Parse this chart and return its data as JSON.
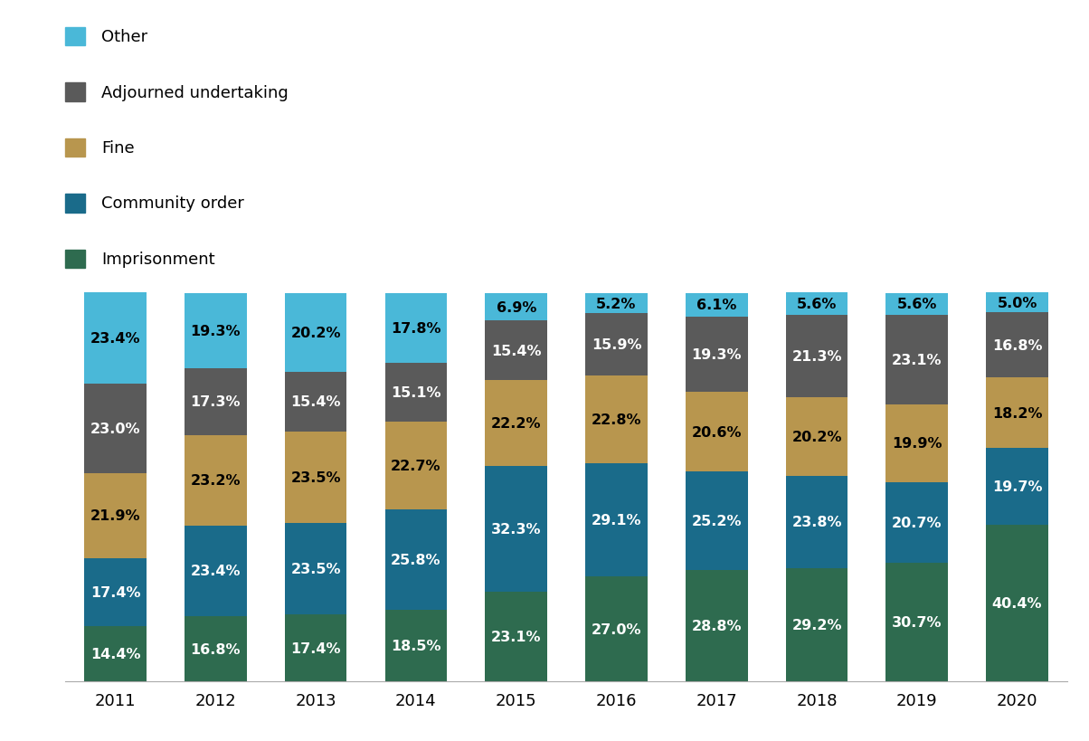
{
  "years": [
    "2011",
    "2012",
    "2013",
    "2014",
    "2015",
    "2016",
    "2017",
    "2018",
    "2019",
    "2020"
  ],
  "categories": [
    "Imprisonment",
    "Community order",
    "Fine",
    "Adjourned undertaking",
    "Other"
  ],
  "colors": [
    "#2e6b4f",
    "#1a6b8a",
    "#b8964e",
    "#5a5a5a",
    "#4ab8d8"
  ],
  "data": {
    "Imprisonment": [
      14.4,
      16.8,
      17.4,
      18.5,
      23.1,
      27.0,
      28.8,
      29.2,
      30.7,
      40.4
    ],
    "Community order": [
      17.4,
      23.4,
      23.5,
      25.8,
      32.3,
      29.1,
      25.2,
      23.8,
      20.7,
      19.7
    ],
    "Fine": [
      21.9,
      23.2,
      23.5,
      22.7,
      22.2,
      22.8,
      20.6,
      20.2,
      19.9,
      18.2
    ],
    "Adjourned undertaking": [
      23.0,
      17.3,
      15.4,
      15.1,
      15.4,
      15.9,
      19.3,
      21.3,
      23.1,
      16.8
    ],
    "Other": [
      23.4,
      19.3,
      20.2,
      17.8,
      6.9,
      5.2,
      6.1,
      5.6,
      5.6,
      5.0
    ]
  },
  "legend_labels": [
    "Other",
    "Adjourned undertaking",
    "Fine",
    "Community order",
    "Imprisonment"
  ],
  "legend_colors": [
    "#4ab8d8",
    "#5a5a5a",
    "#b8964e",
    "#1a6b8a",
    "#2e6b4f"
  ],
  "background_color": "#ffffff",
  "bar_width": 0.62,
  "label_fontsize": 11.5,
  "legend_fontsize": 13,
  "tick_fontsize": 13,
  "text_colors": {
    "Imprisonment": "white",
    "Community order": "white",
    "Fine": "black",
    "Adjourned undertaking": "white",
    "Other": "black"
  }
}
